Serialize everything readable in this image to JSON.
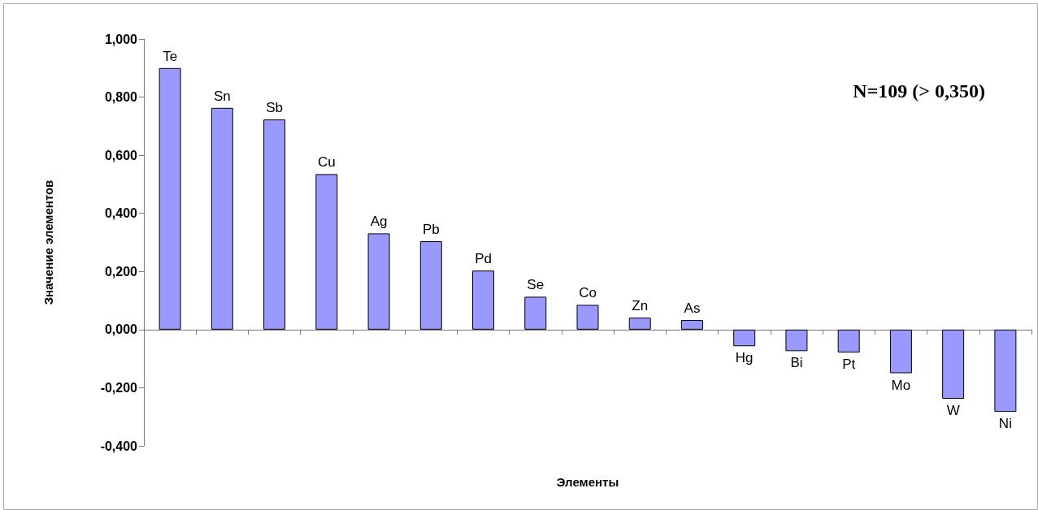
{
  "chart_data": {
    "type": "bar",
    "xlabel": "Элементы",
    "ylabel": "Значение элементов",
    "categories": [
      "Te",
      "Sn",
      "Sb",
      "Cu",
      "Ag",
      "Pb",
      "Pd",
      "Se",
      "Co",
      "Zn",
      "As",
      "Hg",
      "Bi",
      "Pt",
      "Mo",
      "W",
      "Ni"
    ],
    "values": [
      0.9,
      0.763,
      0.723,
      0.535,
      0.331,
      0.304,
      0.203,
      0.113,
      0.085,
      0.041,
      0.033,
      -0.057,
      -0.074,
      -0.079,
      -0.15,
      -0.238,
      -0.283
    ],
    "color": "#9999ff",
    "ylim": [
      -0.4,
      1.0
    ],
    "yticks": [
      {
        "value": -0.4,
        "label": "-0,400"
      },
      {
        "value": -0.2,
        "label": "-0,200"
      },
      {
        "value": 0,
        "label": "0,000"
      },
      {
        "value": 0.2,
        "label": "0,200"
      },
      {
        "value": 0.4,
        "label": "0,400"
      },
      {
        "value": 0.6,
        "label": "0,600"
      },
      {
        "value": 0.8,
        "label": "0,800"
      },
      {
        "value": 1.0,
        "label": "1,000"
      }
    ],
    "grid": false,
    "tick_labels": "y",
    "annotations": [
      "N=109 (> 0,350)"
    ]
  }
}
